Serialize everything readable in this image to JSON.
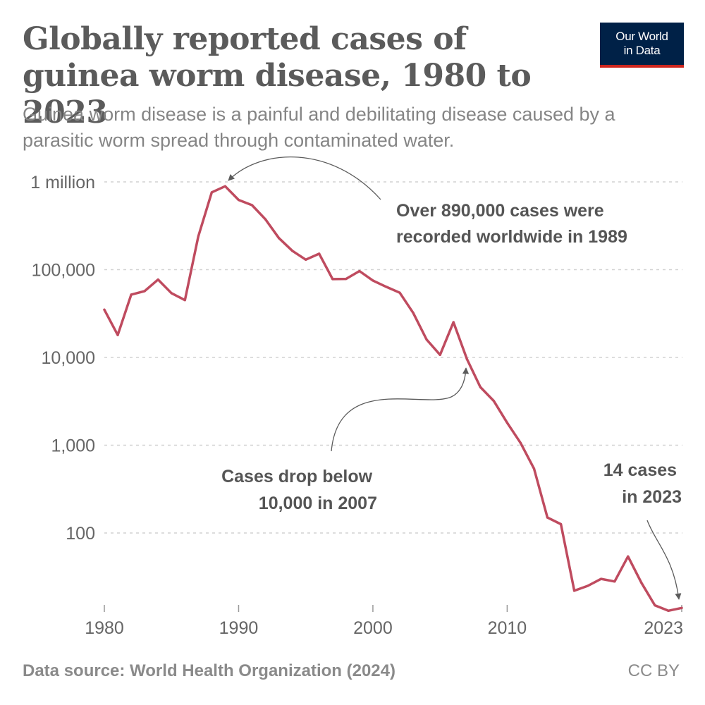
{
  "logo": {
    "line1": "Our World",
    "line2": "in Data"
  },
  "chart_data": {
    "type": "line",
    "title": "Globally reported cases of guinea worm disease, 1980 to 2023",
    "subtitle": "Guinea worm disease is a painful and debilitating disease caused by a parasitic worm spread through contaminated water.",
    "y_scale": "log",
    "ylim": [
      1,
      1000000
    ],
    "xlim": [
      1980,
      2023
    ],
    "y_ticks": [
      {
        "value": 1000000,
        "label": "1 million"
      },
      {
        "value": 100000,
        "label": "100,000"
      },
      {
        "value": 10000,
        "label": "10,000"
      },
      {
        "value": 1000,
        "label": "1,000"
      },
      {
        "value": 100,
        "label": "100"
      }
    ],
    "x_ticks": [
      {
        "value": 1980,
        "label": "1980"
      },
      {
        "value": 1990,
        "label": "1990"
      },
      {
        "value": 2000,
        "label": "2000"
      },
      {
        "value": 2010,
        "label": "2010"
      },
      {
        "value": 2023,
        "label": "2023"
      }
    ],
    "grid": true,
    "series_color": "#bf4b5f",
    "x": [
      1980,
      1981,
      1982,
      1983,
      1984,
      1985,
      1986,
      1987,
      1988,
      1989,
      1990,
      1991,
      1992,
      1993,
      1994,
      1995,
      1996,
      1997,
      1998,
      1999,
      2000,
      2001,
      2002,
      2003,
      2004,
      2005,
      2006,
      2007,
      2008,
      2009,
      2010,
      2011,
      2012,
      2013,
      2014,
      2015,
      2016,
      2017,
      2018,
      2019,
      2020,
      2021,
      2022,
      2023
    ],
    "values": [
      35000,
      18000,
      52000,
      57000,
      77000,
      54000,
      45000,
      240000,
      760000,
      892000,
      623000,
      543000,
      374000,
      229000,
      164000,
      130000,
      152000,
      78000,
      78500,
      96300,
      75200,
      63700,
      54600,
      32200,
      16000,
      10700,
      25200,
      9600,
      4600,
      3200,
      1800,
      1060,
      540,
      150,
      126,
      22,
      25,
      30,
      28,
      54,
      27,
      15,
      13,
      14
    ],
    "annotations": [
      {
        "text": "Over 890,000 cases were recorded worldwide in 1989",
        "line1": "Over 890,000 cases were",
        "line2": "recorded worldwide in 1989"
      },
      {
        "text": "Cases drop below 10,000 in 2007",
        "line1": "Cases drop below",
        "line2": "10,000 in 2007"
      },
      {
        "text": "14 cases in 2023",
        "line1": "14 cases",
        "line2": "in 2023"
      }
    ]
  },
  "footer": {
    "source": "Data source: World Health Organization (2024)",
    "license": "CC BY"
  }
}
